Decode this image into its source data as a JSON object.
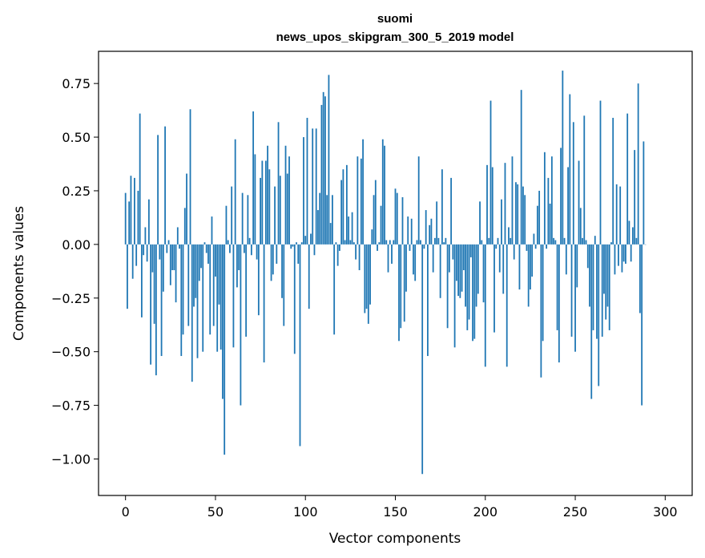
{
  "chart_data": {
    "type": "bar",
    "title_line1": "suomi",
    "title_line2": "news_upos_skipgram_300_5_2019 model",
    "xlabel": "Vector components",
    "ylabel": "Components values",
    "xlim": [
      -15,
      315
    ],
    "ylim": [
      -1.17,
      0.9
    ],
    "xticks": [
      0,
      50,
      100,
      150,
      200,
      250,
      300
    ],
    "xtick_labels": [
      "0",
      "50",
      "100",
      "150",
      "200",
      "250",
      "300"
    ],
    "yticks": [
      0.75,
      0.5,
      0.25,
      0.0,
      -0.25,
      -0.5,
      -0.75,
      -1.0
    ],
    "ytick_labels": [
      "0.75",
      "0.50",
      "0.25",
      "0.00",
      "−0.25",
      "−0.50",
      "−0.75",
      "−1.00"
    ],
    "grid": false,
    "bar_color": "#1f77b4",
    "x_start": 0,
    "values": [
      0.24,
      -0.3,
      0.2,
      0.32,
      -0.16,
      0.31,
      -0.1,
      0.25,
      0.61,
      -0.34,
      -0.05,
      0.08,
      -0.08,
      0.21,
      -0.56,
      -0.13,
      -0.37,
      -0.61,
      0.51,
      -0.07,
      -0.52,
      -0.22,
      0.55,
      -0.04,
      0.02,
      -0.19,
      -0.12,
      -0.12,
      -0.27,
      0.08,
      -0.02,
      -0.52,
      -0.42,
      0.17,
      0.33,
      -0.38,
      0.63,
      -0.64,
      -0.29,
      -0.25,
      -0.53,
      -0.17,
      -0.11,
      -0.5,
      0.01,
      -0.04,
      -0.09,
      -0.42,
      0.13,
      -0.38,
      -0.15,
      -0.5,
      -0.28,
      -0.49,
      -0.72,
      -0.98,
      0.18,
      0.02,
      -0.04,
      0.27,
      -0.48,
      0.49,
      -0.2,
      -0.12,
      -0.75,
      0.24,
      -0.04,
      -0.43,
      0.23,
      0.03,
      -0.05,
      0.62,
      0.42,
      -0.07,
      -0.33,
      0.31,
      0.39,
      -0.55,
      0.39,
      0.46,
      0.35,
      -0.17,
      -0.14,
      0.27,
      -0.09,
      0.57,
      0.32,
      -0.25,
      -0.38,
      0.46,
      0.33,
      0.41,
      -0.02,
      -0.01,
      -0.51,
      0.01,
      -0.09,
      -0.94,
      0.01,
      0.5,
      0.04,
      0.59,
      -0.3,
      0.05,
      0.54,
      -0.05,
      0.54,
      0.16,
      0.24,
      0.65,
      0.71,
      0.69,
      0.23,
      0.79,
      0.1,
      0.23,
      -0.42,
      0.01,
      -0.1,
      -0.03,
      0.3,
      0.35,
      0.02,
      0.37,
      0.13,
      0.02,
      0.15,
      0.01,
      -0.07,
      0.41,
      -0.12,
      0.4,
      0.49,
      -0.32,
      -0.3,
      -0.37,
      -0.28,
      0.07,
      0.23,
      0.3,
      -0.03,
      0.01,
      0.18,
      0.49,
      0.46,
      0.02,
      -0.13,
      0.02,
      -0.09,
      0.02,
      0.26,
      0.24,
      -0.45,
      -0.39,
      0.22,
      -0.36,
      -0.22,
      0.13,
      -0.03,
      0.12,
      -0.14,
      -0.17,
      0.02,
      0.41,
      0.02,
      -1.07,
      -0.02,
      0.16,
      -0.52,
      0.09,
      0.12,
      -0.13,
      0.03,
      0.2,
      0.03,
      -0.25,
      0.35,
      0.01,
      0.03,
      -0.39,
      -0.13,
      0.31,
      -0.07,
      -0.48,
      -0.17,
      -0.24,
      -0.25,
      -0.22,
      -0.12,
      -0.29,
      -0.4,
      -0.35,
      -0.06,
      -0.45,
      -0.44,
      -0.29,
      -0.23,
      0.2,
      0.02,
      -0.27,
      -0.57,
      0.37,
      0.03,
      0.67,
      0.36,
      -0.41,
      -0.02,
      0.03,
      -0.13,
      0.21,
      -0.23,
      0.38,
      -0.57,
      0.08,
      0.03,
      0.41,
      -0.07,
      0.29,
      0.28,
      -0.21,
      0.72,
      0.27,
      0.23,
      -0.03,
      -0.29,
      -0.21,
      -0.15,
      0.05,
      -0.02,
      0.18,
      0.25,
      -0.62,
      -0.45,
      0.43,
      -0.02,
      0.31,
      0.19,
      0.41,
      0.03,
      0.02,
      -0.4,
      -0.55,
      0.45,
      0.81,
      0.03,
      -0.14,
      0.36,
      0.7,
      -0.43,
      0.57,
      -0.5,
      -0.2,
      0.39,
      0.17,
      0.03,
      0.6,
      0.02,
      -0.11,
      -0.29,
      -0.72,
      -0.4,
      0.04,
      -0.44,
      -0.66,
      0.67,
      -0.43,
      -0.23,
      -0.35,
      -0.29,
      -0.4,
      0.01,
      0.59,
      -0.14,
      0.28,
      -0.1,
      0.27,
      -0.13,
      -0.08,
      -0.09,
      0.61,
      0.11,
      -0.08,
      0.08,
      0.44,
      0.03,
      0.75,
      -0.32,
      -0.75,
      0.48,
      0.0
    ]
  }
}
